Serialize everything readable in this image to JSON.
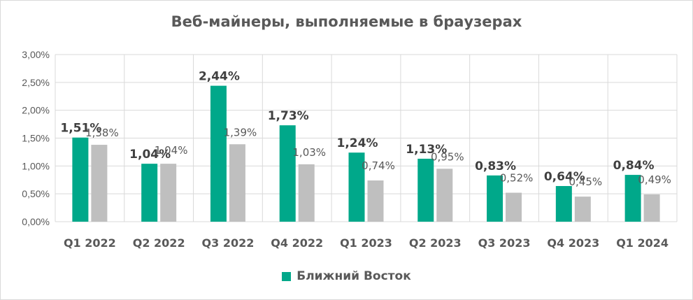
{
  "chart_data": {
    "type": "bar",
    "title": "Веб-майнеры, выполняемые в браузерах",
    "categories": [
      "Q1 2022",
      "Q2 2022",
      "Q3 2022",
      "Q4 2022",
      "Q1 2023",
      "Q2 2023",
      "Q3 2023",
      "Q4 2023",
      "Q1 2024"
    ],
    "series": [
      {
        "name": "Ближний Восток",
        "color": "#00a88a",
        "values": [
          1.51,
          1.04,
          2.44,
          1.73,
          1.24,
          1.13,
          0.83,
          0.64,
          0.84
        ],
        "labels": [
          "1,51%",
          "1,04%",
          "2,44%",
          "1,73%",
          "1,24%",
          "1,13%",
          "0,83%",
          "0,64%",
          "0,84%"
        ]
      },
      {
        "color": "#bfbfbf",
        "values": [
          1.38,
          1.04,
          1.39,
          1.03,
          0.74,
          0.95,
          0.52,
          0.45,
          0.49
        ],
        "labels": [
          "1,38%",
          "1,04%",
          "1,39%",
          "1,03%",
          "0,74%",
          "0,95%",
          "0,52%",
          "0,45%",
          "0,49%"
        ]
      }
    ],
    "y_ticks": [
      "0,00%",
      "0,50%",
      "1,00%",
      "1,50%",
      "2,00%",
      "2,50%",
      "3,00%"
    ],
    "ylim": [
      0,
      3
    ],
    "grid": true,
    "legend_position": "bottom"
  }
}
